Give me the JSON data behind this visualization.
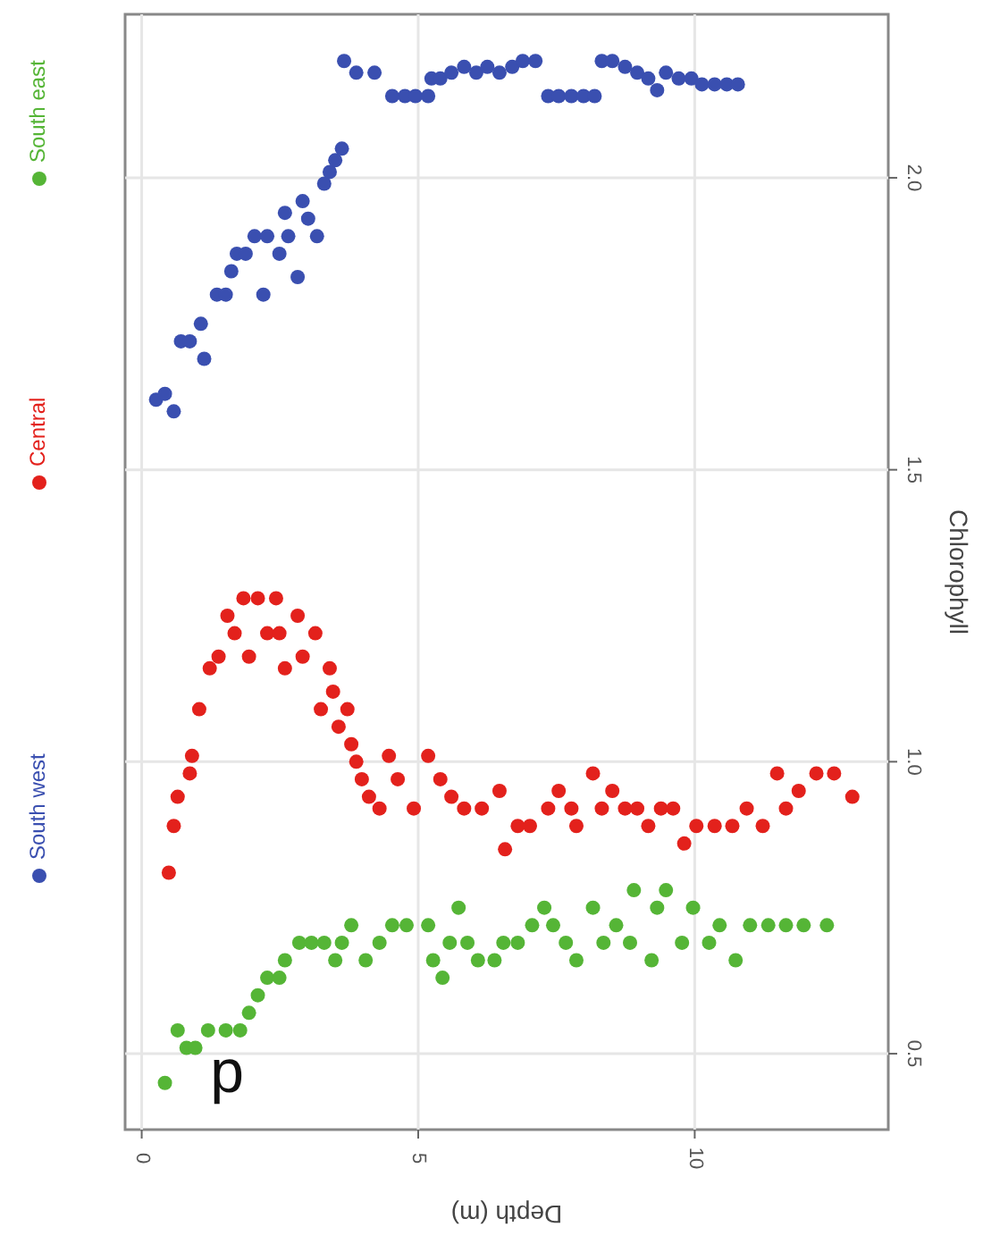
{
  "chart_data": {
    "type": "scatter",
    "xlabel": "Depth (m)",
    "ylabel": "Chlorophyll",
    "annotations": [
      "d"
    ],
    "xlim": [
      -0.3,
      13.5
    ],
    "ylim": [
      0.37,
      2.28
    ],
    "xticks": [
      0,
      5,
      10
    ],
    "yticks": [
      {
        "value": 0.5,
        "label": "0.5"
      },
      {
        "value": 1,
        "label": "1.0"
      },
      {
        "value": 1.5,
        "label": "1.5"
      },
      {
        "value": 2,
        "label": "2.0"
      }
    ],
    "grid": true,
    "legend": "left",
    "marker": "circle",
    "series": [
      {
        "name": "South west",
        "color": "#3a4fb0",
        "x": [
          0.26,
          0.42,
          0.58,
          0.71,
          0.87,
          1.07,
          1.13,
          1.36,
          1.52,
          1.62,
          1.72,
          1.88,
          2.2,
          2.04,
          2.27,
          2.49,
          2.59,
          2.65,
          2.82,
          2.91,
          3.01,
          3.17,
          3.3,
          3.4,
          3.5,
          3.62,
          3.66,
          3.88,
          4.21,
          4.53,
          4.76,
          4.95,
          5.18,
          5.24,
          5.4,
          5.6,
          5.83,
          6.05,
          6.25,
          6.47,
          6.7,
          6.89,
          7.12,
          7.35,
          7.54,
          7.77,
          7.99,
          8.19,
          8.32,
          8.51,
          8.74,
          8.96,
          9.16,
          9.32,
          9.48,
          9.71,
          9.94,
          10.13,
          10.36,
          10.58,
          10.78
        ],
        "values": [
          1.62,
          1.63,
          1.6,
          1.72,
          1.72,
          1.75,
          1.69,
          1.8,
          1.8,
          1.84,
          1.87,
          1.87,
          1.8,
          1.9,
          1.9,
          1.87,
          1.94,
          1.9,
          1.83,
          1.96,
          1.93,
          1.9,
          1.99,
          2.01,
          2.03,
          2.05,
          2.2,
          2.18,
          2.18,
          2.14,
          2.14,
          2.14,
          2.14,
          2.17,
          2.17,
          2.18,
          2.19,
          2.18,
          2.19,
          2.18,
          2.19,
          2.2,
          2.2,
          2.14,
          2.14,
          2.14,
          2.14,
          2.14,
          2.2,
          2.2,
          2.19,
          2.18,
          2.17,
          2.15,
          2.18,
          2.17,
          2.17,
          2.16,
          2.16,
          2.16,
          2.16
        ]
      },
      {
        "name": "Central",
        "color": "#e3211c",
        "x": [
          0.49,
          0.58,
          0.65,
          0.87,
          0.91,
          1.04,
          1.23,
          1.39,
          1.55,
          1.68,
          1.84,
          1.94,
          2.1,
          2.27,
          2.43,
          2.49,
          2.59,
          2.82,
          2.91,
          3.14,
          3.24,
          3.4,
          3.46,
          3.56,
          3.72,
          3.79,
          3.88,
          3.98,
          4.11,
          4.3,
          4.47,
          4.63,
          4.92,
          5.18,
          5.4,
          5.6,
          5.83,
          6.15,
          6.47,
          6.57,
          6.8,
          7.02,
          7.35,
          7.54,
          7.77,
          7.86,
          8.16,
          8.32,
          8.51,
          8.74,
          8.96,
          9.16,
          9.39,
          9.61,
          9.81,
          10.03,
          10.36,
          10.68,
          10.94,
          11.23,
          11.49,
          11.65,
          11.88,
          12.2,
          12.52,
          12.85
        ],
        "values": [
          0.81,
          0.89,
          0.94,
          0.98,
          1.01,
          1.09,
          1.16,
          1.18,
          1.25,
          1.22,
          1.28,
          1.18,
          1.28,
          1.22,
          1.28,
          1.22,
          1.16,
          1.25,
          1.18,
          1.22,
          1.09,
          1.16,
          1.12,
          1.06,
          1.09,
          1.03,
          1.0,
          0.97,
          0.94,
          0.92,
          1.01,
          0.97,
          0.92,
          1.01,
          0.97,
          0.94,
          0.92,
          0.92,
          0.95,
          0.85,
          0.89,
          0.89,
          0.92,
          0.95,
          0.92,
          0.89,
          0.98,
          0.92,
          0.95,
          0.92,
          0.92,
          0.89,
          0.92,
          0.92,
          0.86,
          0.89,
          0.89,
          0.89,
          0.92,
          0.89,
          0.98,
          0.92,
          0.95,
          0.98,
          0.98,
          0.94
        ]
      },
      {
        "name": "South east",
        "color": "#55b536",
        "x": [
          0.42,
          0.65,
          0.81,
          0.97,
          1.2,
          1.52,
          1.78,
          1.94,
          2.1,
          2.27,
          2.49,
          2.59,
          2.85,
          3.07,
          3.3,
          3.5,
          3.62,
          3.79,
          4.05,
          4.3,
          4.53,
          4.79,
          5.18,
          5.27,
          5.44,
          5.57,
          5.73,
          5.89,
          6.08,
          6.38,
          6.54,
          6.8,
          7.06,
          7.28,
          7.44,
          7.67,
          7.86,
          8.16,
          8.35,
          8.58,
          8.83,
          8.9,
          9.22,
          9.32,
          9.48,
          9.77,
          9.97,
          10.26,
          10.45,
          10.74,
          11.0,
          11.33,
          11.65,
          11.97,
          12.39
        ],
        "values": [
          0.45,
          0.54,
          0.51,
          0.51,
          0.54,
          0.54,
          0.54,
          0.57,
          0.6,
          0.63,
          0.63,
          0.66,
          0.69,
          0.69,
          0.69,
          0.66,
          0.69,
          0.72,
          0.66,
          0.69,
          0.72,
          0.72,
          0.72,
          0.66,
          0.63,
          0.69,
          0.75,
          0.69,
          0.66,
          0.66,
          0.69,
          0.69,
          0.72,
          0.75,
          0.72,
          0.69,
          0.66,
          0.75,
          0.69,
          0.72,
          0.69,
          0.78,
          0.66,
          0.75,
          0.78,
          0.69,
          0.75,
          0.69,
          0.72,
          0.66,
          0.72,
          0.72,
          0.72,
          0.72,
          0.72
        ]
      }
    ]
  }
}
